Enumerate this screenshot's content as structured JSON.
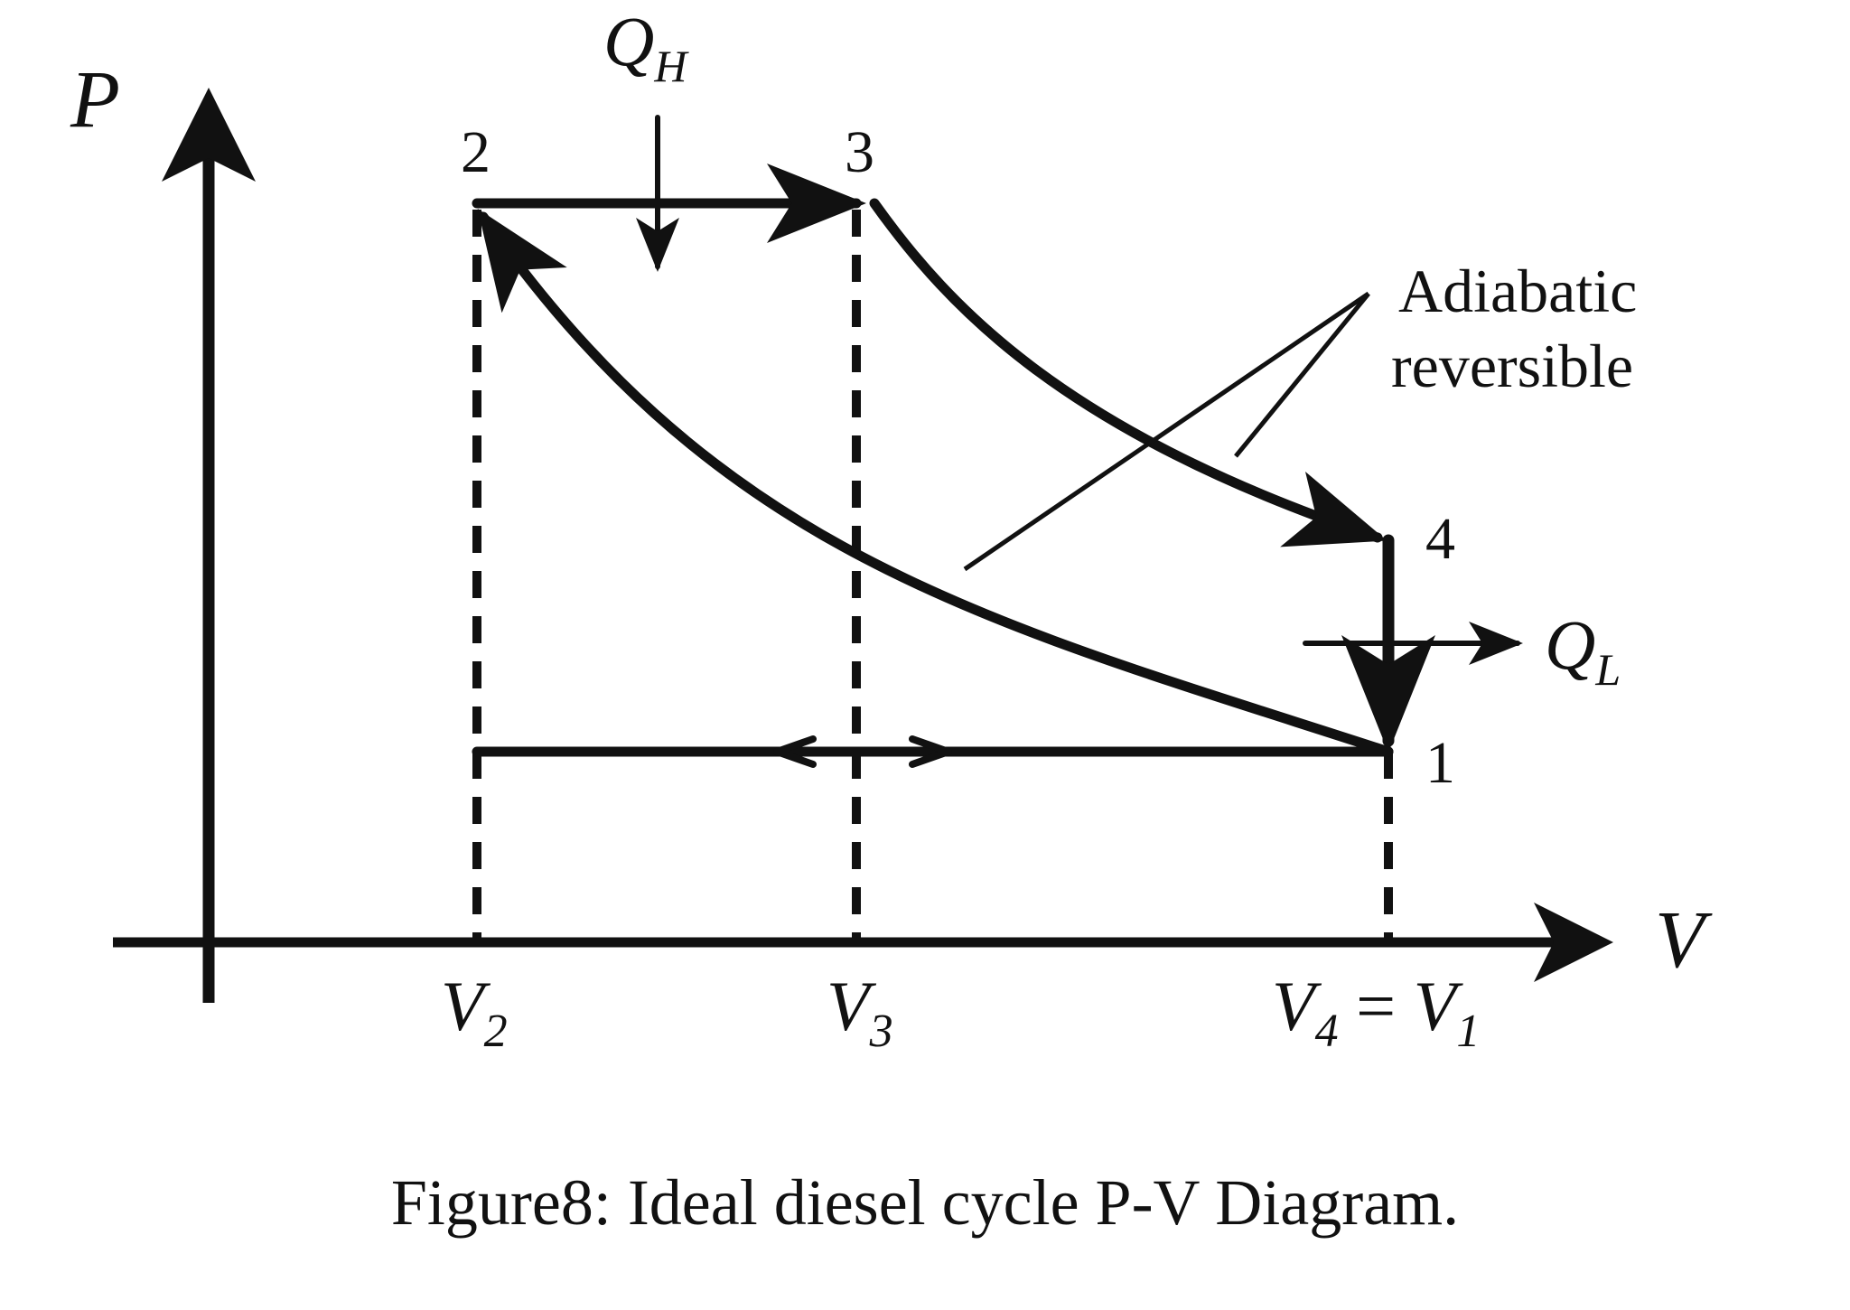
{
  "axes": {
    "y_label": "P",
    "x_label": "V"
  },
  "heat": {
    "in_label_main": "Q",
    "in_label_sub": "H",
    "out_label_main": "Q",
    "out_label_sub": "L"
  },
  "points": {
    "p1": "1",
    "p2": "2",
    "p3": "3",
    "p4": "4"
  },
  "volumes": {
    "v2_main": "V",
    "v2_sub": "2",
    "v3_main": "V",
    "v3_sub": "3",
    "v41_main_a": "V",
    "v41_sub_a": "4",
    "v41_eq": " = ",
    "v41_main_b": "V",
    "v41_sub_b": "1"
  },
  "annotation": {
    "line1": "Adiabatic",
    "line2": "reversible"
  },
  "caption": "Figure8: Ideal diesel cycle P-V Diagram.",
  "colors": {
    "ink": "#111111",
    "background": "#ffffff"
  }
}
